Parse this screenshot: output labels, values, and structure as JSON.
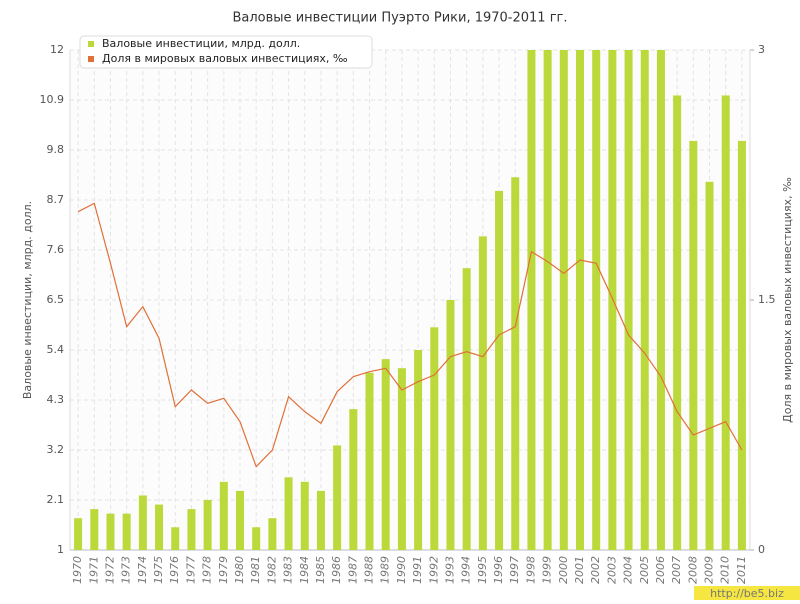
{
  "chart_data": {
    "type": "bar_line",
    "title": "Валовые инвестиции Пуэрто Рики, 1970-2011 гг.",
    "y_label": "Валовые инвестиции, млрд. долл.",
    "y2_label": "Доля в мировых валовых инвестициях, ‰",
    "watermark": "http://be5.biz",
    "categories": [
      "1970",
      "1971",
      "1972",
      "1973",
      "1974",
      "1975",
      "1976",
      "1977",
      "1978",
      "1979",
      "1980",
      "1981",
      "1982",
      "1983",
      "1984",
      "1985",
      "1986",
      "1987",
      "1988",
      "1989",
      "1990",
      "1991",
      "1992",
      "1993",
      "1994",
      "1995",
      "1996",
      "1997",
      "1998",
      "1999",
      "2000",
      "2001",
      "2002",
      "2003",
      "2004",
      "2005",
      "2006",
      "2007",
      "2008",
      "2009",
      "2010",
      "2011"
    ],
    "series": [
      {
        "name": "Валовые инвестиции, млрд. долл.",
        "kind": "bar",
        "color": "#bcd93b",
        "values": [
          1.7,
          1.9,
          1.8,
          1.8,
          2.2,
          2.0,
          1.5,
          1.9,
          2.1,
          2.5,
          2.3,
          1.5,
          1.7,
          2.6,
          2.5,
          2.3,
          3.3,
          4.1,
          4.9,
          5.2,
          5.0,
          5.4,
          5.9,
          6.5,
          7.2,
          7.9,
          8.9,
          9.2,
          12,
          12,
          12,
          12,
          12,
          12,
          12,
          12,
          12,
          11.0,
          10.0,
          9.1,
          11.0,
          10.0
        ]
      },
      {
        "name": "Доля в мировых валовых инвестициях, ‰",
        "kind": "line",
        "axis": "y2",
        "color": "#e0703a",
        "values": [
          2.03,
          2.08,
          1.72,
          1.34,
          1.46,
          1.27,
          0.86,
          0.96,
          0.88,
          0.91,
          0.77,
          0.5,
          0.6,
          0.92,
          0.83,
          0.76,
          0.95,
          1.04,
          1.07,
          1.09,
          0.96,
          1.01,
          1.05,
          1.16,
          1.19,
          1.16,
          1.29,
          1.34,
          1.79,
          1.73,
          1.66,
          1.74,
          1.72,
          1.51,
          1.29,
          1.18,
          1.04,
          0.83,
          0.69,
          0.73,
          0.77,
          0.6
        ]
      }
    ],
    "ylim": [
      1,
      12
    ],
    "yticks": [
      1,
      2.1,
      3.2,
      4.3,
      5.4,
      6.5,
      7.6,
      8.7,
      9.8,
      10.9,
      12
    ],
    "y2lim": [
      0,
      3
    ],
    "y2ticks": [
      0,
      1.5,
      3
    ],
    "grid": true,
    "legend": "top-left"
  }
}
